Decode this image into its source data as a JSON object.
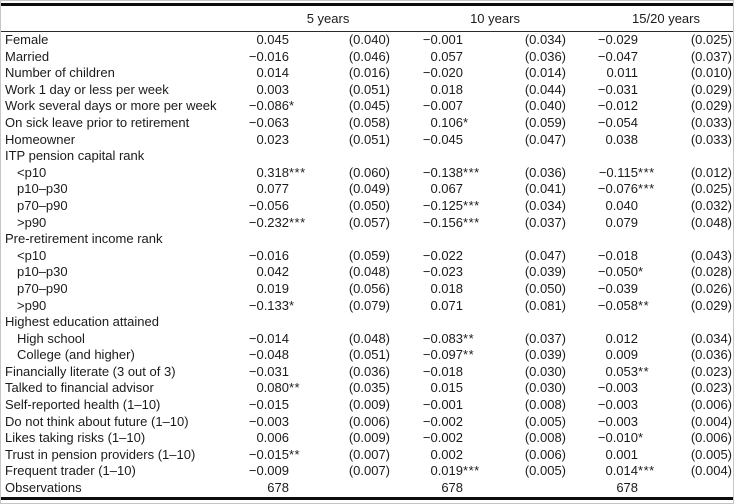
{
  "page": {
    "background": "#ffffff",
    "text_color": "#1b1b1b",
    "rule_color": "#0d0d0d",
    "frame_color": "#c6c6c6"
  },
  "table": {
    "column_groups": [
      {
        "label": "5 years"
      },
      {
        "label": "10 years"
      },
      {
        "label": "15/20 years"
      }
    ],
    "rows": [
      {
        "label": "Female",
        "type": "data",
        "cells": [
          "0.045",
          "(0.040)",
          "−0.001",
          "(0.034)",
          "−0.029",
          "(0.025)"
        ]
      },
      {
        "label": "Married",
        "type": "data",
        "cells": [
          "−0.016",
          "(0.046)",
          "0.057",
          "(0.036)",
          "−0.047",
          "(0.037)"
        ]
      },
      {
        "label": "Number of children",
        "type": "data",
        "cells": [
          "0.014",
          "(0.016)",
          "−0.020",
          "(0.014)",
          "0.011",
          "(0.010)"
        ]
      },
      {
        "label": "Work 1 day or less per week",
        "type": "data",
        "cells": [
          "0.003",
          "(0.051)",
          "0.018",
          "(0.044)",
          "−0.031",
          "(0.029)"
        ]
      },
      {
        "label": "Work several days or more per week",
        "type": "data",
        "cells": [
          "−0.086*",
          "(0.045)",
          "−0.007",
          "(0.040)",
          "−0.012",
          "(0.029)"
        ]
      },
      {
        "label": "On sick leave prior to retirement",
        "type": "data",
        "cells": [
          "−0.063",
          "(0.058)",
          "0.106*",
          "(0.059)",
          "−0.054",
          "(0.033)"
        ]
      },
      {
        "label": "Homeowner",
        "type": "data",
        "cells": [
          "0.023",
          "(0.051)",
          "−0.045",
          "(0.047)",
          "0.038",
          "(0.033)"
        ]
      },
      {
        "label": "ITP pension capital rank",
        "type": "section",
        "cells": [
          "",
          "",
          "",
          "",
          "",
          ""
        ]
      },
      {
        "label": "<p10",
        "type": "data",
        "indent": true,
        "cells": [
          "0.318***",
          "(0.060)",
          "−0.138***",
          "(0.036)",
          "−0.115***",
          "(0.012)"
        ]
      },
      {
        "label": "p10–p30",
        "type": "data",
        "indent": true,
        "cells": [
          "0.077",
          "(0.049)",
          "0.067",
          "(0.041)",
          "−0.076***",
          "(0.025)"
        ]
      },
      {
        "label": "p70–p90",
        "type": "data",
        "indent": true,
        "cells": [
          "−0.056",
          "(0.050)",
          "−0.125***",
          "(0.034)",
          "0.040",
          "(0.032)"
        ]
      },
      {
        "label": ">p90",
        "type": "data",
        "indent": true,
        "cells": [
          "−0.232***",
          "(0.057)",
          "−0.156***",
          "(0.037)",
          "0.079",
          "(0.048)"
        ]
      },
      {
        "label": "Pre-retirement income rank",
        "type": "section",
        "cells": [
          "",
          "",
          "",
          "",
          "",
          ""
        ]
      },
      {
        "label": "<p10",
        "type": "data",
        "indent": true,
        "cells": [
          "−0.016",
          "(0.059)",
          "−0.022",
          "(0.047)",
          "−0.018",
          "(0.043)"
        ]
      },
      {
        "label": "p10–p30",
        "type": "data",
        "indent": true,
        "cells": [
          "0.042",
          "(0.048)",
          "−0.023",
          "(0.039)",
          "−0.050*",
          "(0.028)"
        ]
      },
      {
        "label": "p70–p90",
        "type": "data",
        "indent": true,
        "cells": [
          "0.019",
          "(0.056)",
          "0.018",
          "(0.050)",
          "−0.039",
          "(0.026)"
        ]
      },
      {
        "label": ">p90",
        "type": "data",
        "indent": true,
        "cells": [
          "−0.133*",
          "(0.079)",
          "0.071",
          "(0.081)",
          "−0.058**",
          "(0.029)"
        ]
      },
      {
        "label": "Highest education attained",
        "type": "section",
        "cells": [
          "",
          "",
          "",
          "",
          "",
          ""
        ]
      },
      {
        "label": "High school",
        "type": "data",
        "indent": true,
        "cells": [
          "−0.014",
          "(0.048)",
          "−0.083**",
          "(0.037)",
          "0.012",
          "(0.034)"
        ]
      },
      {
        "label": "College (and higher)",
        "type": "data",
        "indent": true,
        "cells": [
          "−0.048",
          "(0.051)",
          "−0.097**",
          "(0.039)",
          "0.009",
          "(0.036)"
        ]
      },
      {
        "label": "Financially literate (3 out of 3)",
        "type": "data",
        "cells": [
          "−0.031",
          "(0.036)",
          "−0.018",
          "(0.030)",
          "0.053**",
          "(0.023)"
        ]
      },
      {
        "label": "Talked to financial advisor",
        "type": "data",
        "cells": [
          "0.080**",
          "(0.035)",
          "0.015",
          "(0.030)",
          "−0.003",
          "(0.023)"
        ]
      },
      {
        "label": "Self-reported health (1–10)",
        "type": "data",
        "cells": [
          "−0.015",
          "(0.009)",
          "−0.001",
          "(0.008)",
          "−0.003",
          "(0.006)"
        ]
      },
      {
        "label": "Do not think about future (1–10)",
        "type": "data",
        "cells": [
          "−0.003",
          "(0.006)",
          "−0.002",
          "(0.005)",
          "−0.003",
          "(0.004)"
        ]
      },
      {
        "label": "Likes taking risks (1–10)",
        "type": "data",
        "cells": [
          "0.006",
          "(0.009)",
          "−0.002",
          "(0.008)",
          "−0.010*",
          "(0.006)"
        ]
      },
      {
        "label": "Trust in pension providers (1–10)",
        "type": "data",
        "cells": [
          "−0.015**",
          "(0.007)",
          "0.002",
          "(0.006)",
          "0.001",
          "(0.005)"
        ]
      },
      {
        "label": "Frequent trader (1–10)",
        "type": "data",
        "cells": [
          "−0.009",
          "(0.007)",
          "0.019***",
          "(0.005)",
          "0.014***",
          "(0.004)"
        ]
      },
      {
        "label": "Observations",
        "type": "summary",
        "cells": [
          "678",
          "",
          "678",
          "",
          "678",
          ""
        ]
      }
    ]
  }
}
